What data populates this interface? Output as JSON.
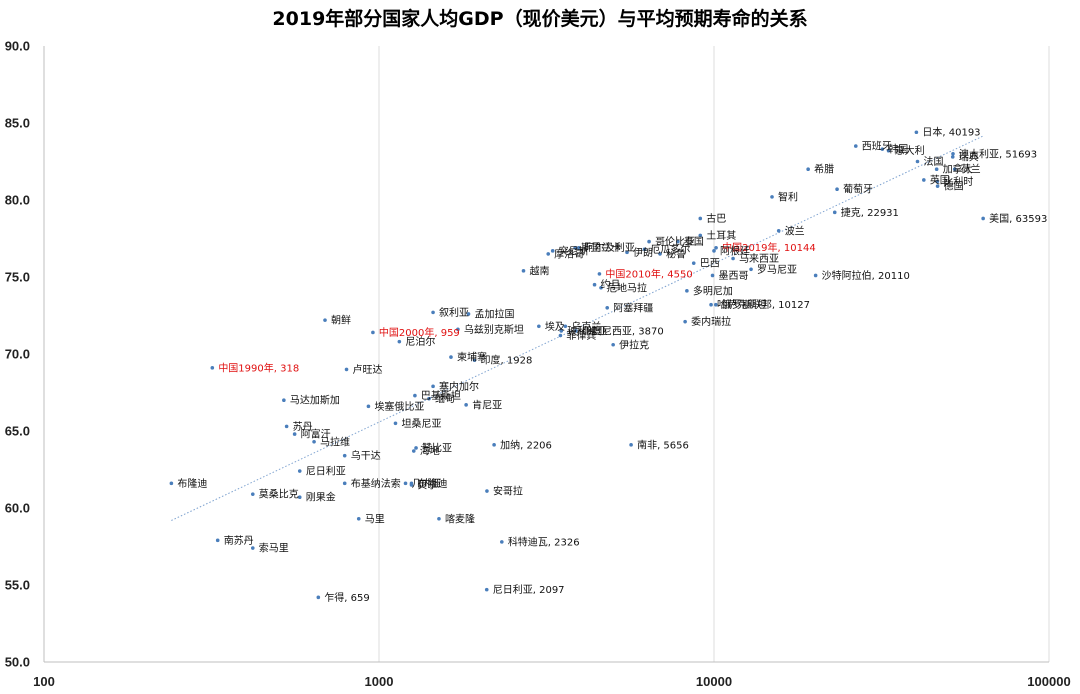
{
  "chart_data": {
    "type": "scatter",
    "title": "2019年部分国家人均GDP（现价美元）与平均预期寿命的关系",
    "xlabel": "",
    "ylabel": "",
    "x_scale": "log",
    "xlim": [
      100,
      100000
    ],
    "ylim": [
      50,
      90
    ],
    "x_ticks": [
      "100",
      "1000",
      "10000",
      "100000"
    ],
    "y_ticks": [
      "50.0",
      "55.0",
      "60.0",
      "65.0",
      "70.0",
      "75.0",
      "80.0",
      "85.0",
      "90.0"
    ],
    "grid": "vertical",
    "legend": "none",
    "trendline": true,
    "colors": {
      "point": "#4a7ebb",
      "highlight_label": "#e01010",
      "trendline": "#7fa3d0"
    },
    "points": [
      {
        "label": "日本, 40193",
        "x": 40193,
        "y": 84.4
      },
      {
        "label": "西班牙",
        "x": 26500,
        "y": 83.5
      },
      {
        "label": "韩国",
        "x": 31800,
        "y": 83.3
      },
      {
        "label": "意大利",
        "x": 33200,
        "y": 83.2
      },
      {
        "label": "澳大利亚, 51693",
        "x": 51693,
        "y": 83.0
      },
      {
        "label": "瑞典",
        "x": 51600,
        "y": 82.8
      },
      {
        "label": "法国",
        "x": 40500,
        "y": 82.5
      },
      {
        "label": "加拿大",
        "x": 46200,
        "y": 82.0
      },
      {
        "label": "荷兰",
        "x": 52300,
        "y": 82.0
      },
      {
        "label": "英国",
        "x": 42300,
        "y": 81.3
      },
      {
        "label": "比利时",
        "x": 46400,
        "y": 81.2
      },
      {
        "label": "德国",
        "x": 46500,
        "y": 80.9
      },
      {
        "label": "希腊",
        "x": 19100,
        "y": 82.0
      },
      {
        "label": "葡萄牙",
        "x": 23300,
        "y": 80.7
      },
      {
        "label": "美国, 63593",
        "x": 63593,
        "y": 78.8
      },
      {
        "label": "智利",
        "x": 14900,
        "y": 80.2
      },
      {
        "label": "捷克, 22931",
        "x": 22931,
        "y": 79.2
      },
      {
        "label": "古巴",
        "x": 9100,
        "y": 78.8
      },
      {
        "label": "波兰",
        "x": 15600,
        "y": 78.0
      },
      {
        "label": "土耳其",
        "x": 9100,
        "y": 77.7
      },
      {
        "label": "哥伦比亚",
        "x": 6400,
        "y": 77.3
      },
      {
        "label": "泰国",
        "x": 7800,
        "y": 77.3
      },
      {
        "label": "中国2019年, 10144",
        "x": 10144,
        "y": 76.9,
        "highlight": true
      },
      {
        "label": "斯里兰卡",
        "x": 3850,
        "y": 76.9
      },
      {
        "label": "厄瓜多尔",
        "x": 6200,
        "y": 76.8
      },
      {
        "label": "阿尔及利亚",
        "x": 3950,
        "y": 76.9
      },
      {
        "label": "突尼斯",
        "x": 3300,
        "y": 76.7
      },
      {
        "label": "阿根廷",
        "x": 10000,
        "y": 76.7
      },
      {
        "label": "伊朗",
        "x": 5500,
        "y": 76.6
      },
      {
        "label": "秘鲁",
        "x": 6900,
        "y": 76.5
      },
      {
        "label": "马来西亚",
        "x": 11400,
        "y": 76.2
      },
      {
        "label": "摩洛哥",
        "x": 3200,
        "y": 76.5
      },
      {
        "label": "巴西",
        "x": 8700,
        "y": 75.9
      },
      {
        "label": "越南",
        "x": 2700,
        "y": 75.4
      },
      {
        "label": "罗马尼亚",
        "x": 12900,
        "y": 75.5
      },
      {
        "label": "墨西哥",
        "x": 9900,
        "y": 75.1
      },
      {
        "label": "沙特阿拉伯, 20110",
        "x": 20110,
        "y": 75.1
      },
      {
        "label": "中国2010年, 4550",
        "x": 4550,
        "y": 75.2,
        "highlight": true
      },
      {
        "label": "约旦",
        "x": 4400,
        "y": 74.5
      },
      {
        "label": "危地马拉",
        "x": 4600,
        "y": 74.3
      },
      {
        "label": "多明尼加",
        "x": 8300,
        "y": 74.1
      },
      {
        "label": "孟加拉国",
        "x": 1850,
        "y": 72.6
      },
      {
        "label": "叙利亚",
        "x": 1450,
        "y": 72.7
      },
      {
        "label": "朝鲜",
        "x": 690,
        "y": 72.2
      },
      {
        "label": "阿塞拜疆",
        "x": 4800,
        "y": 73.0
      },
      {
        "label": "哈萨克斯坦",
        "x": 9800,
        "y": 73.2
      },
      {
        "label": "俄罗斯联邦, 10127",
        "x": 10127,
        "y": 73.2
      },
      {
        "label": "埃及",
        "x": 3000,
        "y": 71.8
      },
      {
        "label": "印度尼西亚, 3870",
        "x": 3870,
        "y": 71.5
      },
      {
        "label": "委内瑞拉",
        "x": 8200,
        "y": 72.1
      },
      {
        "label": "乌兹别克斯坦",
        "x": 1720,
        "y": 71.6
      },
      {
        "label": "玻利维亚",
        "x": 3500,
        "y": 71.5
      },
      {
        "label": "乌克兰",
        "x": 3600,
        "y": 71.8
      },
      {
        "label": "中国2000年, 959",
        "x": 959,
        "y": 71.4,
        "highlight": true
      },
      {
        "label": "尼泊尔",
        "x": 1150,
        "y": 70.8
      },
      {
        "label": "菲律宾",
        "x": 3480,
        "y": 71.2
      },
      {
        "label": "伊拉克",
        "x": 5000,
        "y": 70.6
      },
      {
        "label": "柬埔寨",
        "x": 1640,
        "y": 69.8
      },
      {
        "label": "印度, 1928",
        "x": 1928,
        "y": 69.6
      },
      {
        "label": "卢旺达",
        "x": 800,
        "y": 69.0
      },
      {
        "label": "中国1990年, 318",
        "x": 318,
        "y": 69.1,
        "highlight": true
      },
      {
        "label": "塞内加尔",
        "x": 1450,
        "y": 67.9
      },
      {
        "label": "巴基斯坦",
        "x": 1280,
        "y": 67.3
      },
      {
        "label": "缅甸",
        "x": 1410,
        "y": 67.1
      },
      {
        "label": "马达加斯加",
        "x": 520,
        "y": 67.0
      },
      {
        "label": "肯尼亚",
        "x": 1820,
        "y": 66.7
      },
      {
        "label": "埃塞俄比亚",
        "x": 930,
        "y": 66.6
      },
      {
        "label": "坦桑尼亚",
        "x": 1120,
        "y": 65.5
      },
      {
        "label": "苏丹",
        "x": 530,
        "y": 65.3
      },
      {
        "label": "阿富汗",
        "x": 560,
        "y": 64.8
      },
      {
        "label": "马拉维",
        "x": 640,
        "y": 64.3
      },
      {
        "label": "赞比亚",
        "x": 1290,
        "y": 63.9
      },
      {
        "label": "海地",
        "x": 1270,
        "y": 63.7
      },
      {
        "label": "加纳, 2206",
        "x": 2206,
        "y": 64.1
      },
      {
        "label": "南非, 5656",
        "x": 5656,
        "y": 64.1
      },
      {
        "label": "乌干达",
        "x": 790,
        "y": 63.4
      },
      {
        "label": "尼日利亚",
        "x": 580,
        "y": 62.4
      },
      {
        "label": "贝宁",
        "x": 1250,
        "y": 61.5
      },
      {
        "label": "几内亚",
        "x": 1200,
        "y": 61.6
      },
      {
        "label": "布隆迪",
        "x": 1250,
        "y": 61.6
      },
      {
        "label": "喀麦隆",
        "x": 1510,
        "y": 59.3
      },
      {
        "label": "布基纳法索",
        "x": 790,
        "y": 61.6
      },
      {
        "label": "安哥拉",
        "x": 2100,
        "y": 61.1
      },
      {
        "label": "布隆迪",
        "x": 240,
        "y": 61.6
      },
      {
        "label": "莫桑比克",
        "x": 420,
        "y": 60.9
      },
      {
        "label": "刚果金",
        "x": 580,
        "y": 60.7
      },
      {
        "label": "马里",
        "x": 870,
        "y": 59.3
      },
      {
        "label": "南苏丹",
        "x": 330,
        "y": 57.9
      },
      {
        "label": "索马里",
        "x": 420,
        "y": 57.4
      },
      {
        "label": "科特迪瓦, 2326",
        "x": 2326,
        "y": 57.8
      },
      {
        "label": "尼日利亚, 2097",
        "x": 2097,
        "y": 54.7
      },
      {
        "label": "乍得, 659",
        "x": 659,
        "y": 54.2
      }
    ]
  }
}
